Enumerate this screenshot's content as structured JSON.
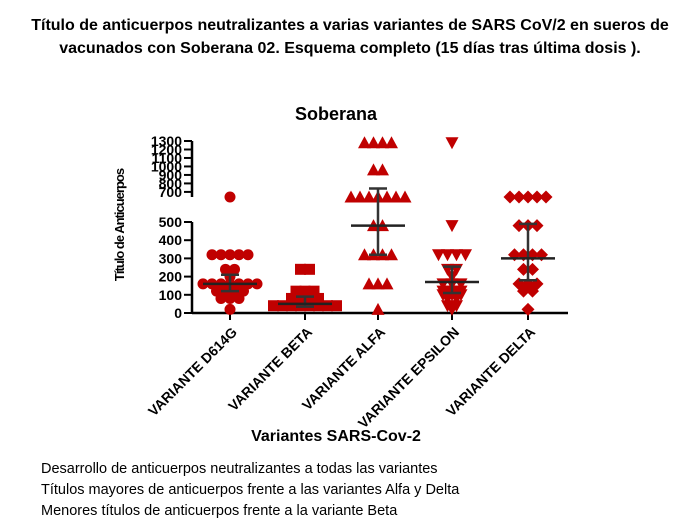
{
  "slide": {
    "title_line1": "Título de anticuerpos neutralizantes  a varias variantes de SARS CoV/2 en sueros de",
    "title_line2": "vacunados con Soberana 02. Esquema completo (15 días tras última dosis )."
  },
  "notes": [
    "Desarrollo de anticuerpos neutralizantes a todas las variantes",
    "Títulos mayores de anticuerpos frente a las variantes Alfa y Delta",
    "Menores títulos de anticuerpos frente a la variante Beta"
  ],
  "chart_data": {
    "type": "scatter",
    "title": "Soberana",
    "xlabel": "Variantes SARS-Cov-2",
    "ylabel": "Título de Anticuerpos",
    "categories": [
      "VARIANTE D614G",
      "VARIANTE BETA",
      "VARIANTE ALFA",
      "VARIANTE EPSILON",
      "VARIANTE DELTA"
    ],
    "y_axis": {
      "broken": true,
      "lower_range": [
        0,
        500
      ],
      "lower_ticks": [
        0,
        100,
        200,
        300,
        400,
        500
      ],
      "upper_range": [
        640,
        1300
      ],
      "upper_ticks": [
        700,
        800,
        900,
        1000,
        1100,
        1200,
        1300
      ]
    },
    "series": [
      {
        "marker": "circle",
        "color": "#c00000",
        "values": [
          640,
          320,
          320,
          320,
          320,
          320,
          240,
          240,
          200,
          160,
          160,
          160,
          160,
          160,
          160,
          160,
          120,
          120,
          120,
          120,
          80,
          80,
          80,
          20
        ],
        "mean": 160,
        "error": [
          120,
          210
        ]
      },
      {
        "marker": "square",
        "color": "#c00000",
        "values": [
          240,
          240,
          120,
          120,
          120,
          100,
          100,
          80,
          80,
          80,
          80,
          60,
          60,
          60,
          60,
          40,
          40,
          40,
          40,
          40,
          40,
          40,
          40
        ],
        "mean": 50,
        "error": [
          35,
          90
        ]
      },
      {
        "marker": "triangle",
        "color": "#c00000",
        "values": [
          1280,
          1280,
          1280,
          1280,
          960,
          960,
          640,
          640,
          640,
          640,
          640,
          640,
          640,
          480,
          480,
          320,
          320,
          320,
          320,
          160,
          160,
          160,
          20
        ],
        "mean": 480,
        "error": [
          320,
          740
        ]
      },
      {
        "marker": "triangle-down",
        "color": "#c00000",
        "values": [
          1280,
          480,
          320,
          320,
          320,
          320,
          240,
          240,
          200,
          160,
          160,
          160,
          120,
          120,
          120,
          100,
          100,
          100,
          80,
          80,
          40,
          40,
          20
        ],
        "mean": 170,
        "error": [
          110,
          255
        ]
      },
      {
        "marker": "diamond",
        "color": "#c00000",
        "values": [
          640,
          640,
          640,
          640,
          640,
          480,
          480,
          480,
          320,
          320,
          320,
          320,
          240,
          240,
          160,
          160,
          160,
          120,
          120,
          20
        ],
        "mean": 300,
        "error": [
          180,
          490
        ]
      }
    ]
  }
}
